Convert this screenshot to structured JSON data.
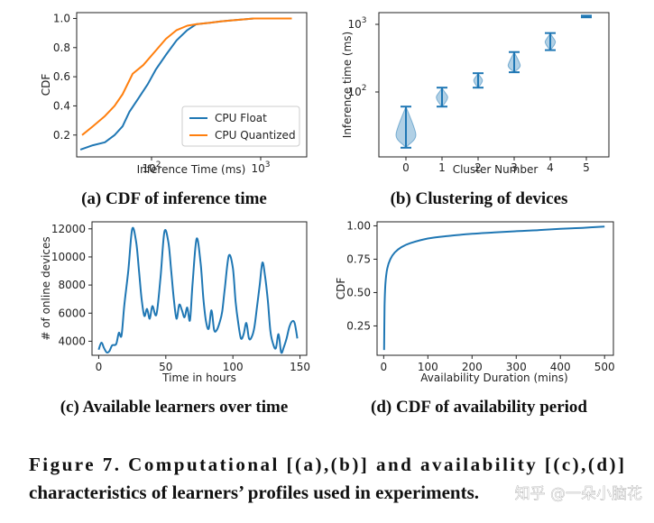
{
  "chart_data": [
    {
      "type": "line",
      "title": "(a) CDF of inference time",
      "xlabel": "Inference Time (ms)",
      "ylabel": "CDF",
      "xscale": "log",
      "xlim": [
        25,
        3000
      ],
      "ylim": [
        0.05,
        1.04
      ],
      "yticks": [
        "0.2",
        "0.4",
        "0.6",
        "0.8",
        "1.0"
      ],
      "xticks": [
        {
          "base": "10",
          "exp": "2",
          "value": 100
        },
        {
          "base": "10",
          "exp": "3",
          "value": 1000
        }
      ],
      "legend": {
        "position": "lower-right",
        "entries": [
          "CPU Float",
          "CPU Quantized"
        ]
      },
      "series": [
        {
          "name": "CPU Float",
          "color": "#1f77b4",
          "points": [
            [
              27,
              0.1
            ],
            [
              35,
              0.13
            ],
            [
              45,
              0.15
            ],
            [
              55,
              0.2
            ],
            [
              65,
              0.26
            ],
            [
              75,
              0.36
            ],
            [
              90,
              0.45
            ],
            [
              110,
              0.55
            ],
            [
              130,
              0.65
            ],
            [
              160,
              0.75
            ],
            [
              200,
              0.85
            ],
            [
              250,
              0.92
            ],
            [
              300,
              0.96
            ],
            [
              400,
              0.97
            ],
            [
              500,
              0.98
            ],
            [
              700,
              0.99
            ],
            [
              1000,
              1.0
            ],
            [
              2200,
              1.0
            ]
          ]
        },
        {
          "name": "CPU Quantized",
          "color": "#ff7f0e",
          "points": [
            [
              28,
              0.2
            ],
            [
              35,
              0.26
            ],
            [
              45,
              0.33
            ],
            [
              55,
              0.4
            ],
            [
              65,
              0.48
            ],
            [
              80,
              0.62
            ],
            [
              100,
              0.68
            ],
            [
              130,
              0.78
            ],
            [
              160,
              0.86
            ],
            [
              200,
              0.92
            ],
            [
              250,
              0.95
            ],
            [
              300,
              0.96
            ],
            [
              400,
              0.97
            ],
            [
              500,
              0.98
            ],
            [
              700,
              0.99
            ],
            [
              1000,
              1.0
            ],
            [
              2200,
              1.0
            ]
          ]
        }
      ]
    },
    {
      "type": "violin",
      "title": "(b) Clustering of devices",
      "xlabel": "Cluster Number",
      "ylabel": "Inference time (ms)",
      "yscale": "log",
      "ylim": [
        12,
        1100
      ],
      "categories": [
        "0",
        "1",
        "2",
        "3",
        "4",
        "5"
      ],
      "yticks": [
        {
          "base": "10",
          "exp": "2",
          "value": 100
        },
        {
          "base": "10",
          "exp": "3",
          "value": 1000
        }
      ],
      "color": "#1f77b4",
      "series": [
        {
          "cluster": "0",
          "min": 16,
          "max": 58,
          "median": 24
        },
        {
          "cluster": "1",
          "min": 58,
          "max": 105,
          "median": 78
        },
        {
          "cluster": "2",
          "min": 105,
          "max": 165,
          "median": 132
        },
        {
          "cluster": "3",
          "min": 170,
          "max": 320,
          "median": 210
        },
        {
          "cluster": "4",
          "min": 340,
          "max": 580,
          "median": 440
        },
        {
          "cluster": "5",
          "min": 950,
          "max": 1000,
          "median": 980
        }
      ]
    },
    {
      "type": "line",
      "title": "(c) Available learners over time",
      "xlabel": "Time in hours",
      "ylabel": "# of online devices",
      "xlim": [
        -5,
        155
      ],
      "ylim": [
        3000,
        12500
      ],
      "xticks": [
        "0",
        "50",
        "100",
        "150"
      ],
      "yticks": [
        "4000",
        "6000",
        "8000",
        "10000",
        "12000"
      ],
      "series": [
        {
          "name": "online devices",
          "color": "#1f77b4",
          "points": [
            [
              0,
              3400
            ],
            [
              2,
              3900
            ],
            [
              4,
              3500
            ],
            [
              6,
              3200
            ],
            [
              8,
              3300
            ],
            [
              10,
              3700
            ],
            [
              13,
              3800
            ],
            [
              15,
              4600
            ],
            [
              17,
              4400
            ],
            [
              19,
              6500
            ],
            [
              22,
              9000
            ],
            [
              25,
              12000
            ],
            [
              28,
              11000
            ],
            [
              30,
              9000
            ],
            [
              32,
              7000
            ],
            [
              34,
              5800
            ],
            [
              36,
              6300
            ],
            [
              38,
              5600
            ],
            [
              40,
              6500
            ],
            [
              43,
              5900
            ],
            [
              46,
              8500
            ],
            [
              49,
              11800
            ],
            [
              52,
              11000
            ],
            [
              54,
              9000
            ],
            [
              56,
              7000
            ],
            [
              58,
              5600
            ],
            [
              60,
              6600
            ],
            [
              62,
              6200
            ],
            [
              64,
              5700
            ],
            [
              66,
              6400
            ],
            [
              68,
              5500
            ],
            [
              70,
              8200
            ],
            [
              73,
              11300
            ],
            [
              76,
              9500
            ],
            [
              78,
              7000
            ],
            [
              80,
              5400
            ],
            [
              82,
              4900
            ],
            [
              84,
              6200
            ],
            [
              86,
              4800
            ],
            [
              88,
              4800
            ],
            [
              90,
              5300
            ],
            [
              92,
              6100
            ],
            [
              94,
              7800
            ],
            [
              97,
              10100
            ],
            [
              100,
              9200
            ],
            [
              102,
              6800
            ],
            [
              104,
              5300
            ],
            [
              106,
              4200
            ],
            [
              108,
              4500
            ],
            [
              110,
              5300
            ],
            [
              112,
              4200
            ],
            [
              114,
              4300
            ],
            [
              116,
              5000
            ],
            [
              118,
              6500
            ],
            [
              120,
              8000
            ],
            [
              122,
              9600
            ],
            [
              124,
              8600
            ],
            [
              126,
              6900
            ],
            [
              128,
              4700
            ],
            [
              130,
              3800
            ],
            [
              132,
              3500
            ],
            [
              134,
              4500
            ],
            [
              136,
              3200
            ],
            [
              138,
              3600
            ],
            [
              140,
              4200
            ],
            [
              142,
              5000
            ],
            [
              144,
              5400
            ],
            [
              146,
              5300
            ],
            [
              148,
              4200
            ]
          ]
        }
      ]
    },
    {
      "type": "line",
      "title": "(d) CDF of availability period",
      "xlabel": "Availability Duration (mins)",
      "ylabel": "CDF",
      "xlim": [
        -15,
        520
      ],
      "ylim": [
        0.03,
        1.03
      ],
      "xticks": [
        "0",
        "100",
        "200",
        "300",
        "400",
        "500"
      ],
      "yticks": [
        "0.25",
        "0.50",
        "0.75",
        "1.00"
      ],
      "series": [
        {
          "name": "availability",
          "color": "#1f77b4",
          "points": [
            [
              1,
              0.07
            ],
            [
              2,
              0.4
            ],
            [
              4,
              0.57
            ],
            [
              8,
              0.68
            ],
            [
              15,
              0.75
            ],
            [
              25,
              0.8
            ],
            [
              40,
              0.84
            ],
            [
              60,
              0.87
            ],
            [
              100,
              0.905
            ],
            [
              150,
              0.925
            ],
            [
              200,
              0.94
            ],
            [
              250,
              0.95
            ],
            [
              300,
              0.96
            ],
            [
              350,
              0.968
            ],
            [
              400,
              0.977
            ],
            [
              450,
              0.985
            ],
            [
              500,
              0.995
            ]
          ]
        }
      ]
    }
  ],
  "figure_caption": {
    "line1": "Figure 7. Computational [(a),(b)] and availability [(c),(d)]",
    "line2": "characteristics of learners’ profiles used in experiments."
  },
  "watermark": "知乎 @一朵小脑花"
}
